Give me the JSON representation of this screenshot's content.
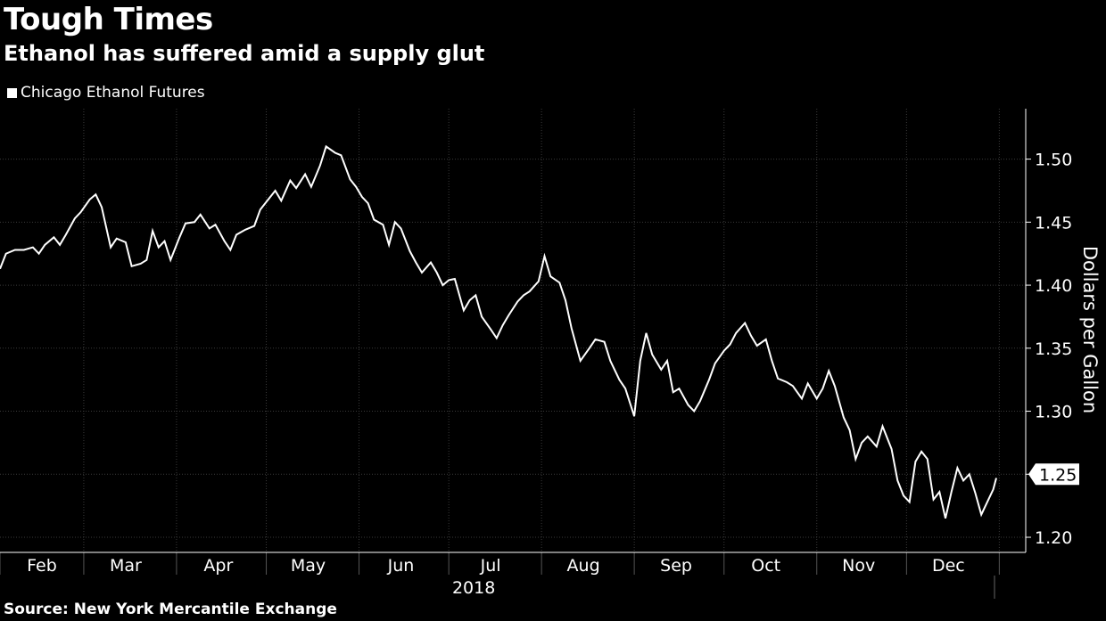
{
  "header": {
    "title": "Tough Times",
    "subtitle": "Ethanol has suffered amid a supply glut"
  },
  "legend": {
    "series_label": "Chicago Ethanol Futures"
  },
  "footer": {
    "source": "Source: New York Mercantile Exchange"
  },
  "colors": {
    "background": "#000000",
    "line": "#ffffff",
    "grid": "#3a3a3a"
  },
  "chart_data": {
    "type": "line",
    "title": "Tough Times",
    "subtitle": "Ethanol has suffered amid a supply glut",
    "ylabel": "Dollars per Gallon",
    "xlabel": "2018",
    "ylim": [
      1.188,
      1.54
    ],
    "yticks": [
      1.2,
      1.25,
      1.3,
      1.35,
      1.4,
      1.45,
      1.5
    ],
    "ytick_labels": [
      "1.20",
      "",
      "1.30",
      "1.35",
      "1.40",
      "1.45",
      "1.50"
    ],
    "grid": true,
    "legend_position": "top-left",
    "y_axis_side": "right",
    "x_start": "2018-02-01",
    "x_end": "2018-12-31",
    "month_ticks": [
      "2018-02-01",
      "2018-03-01",
      "2018-04-01",
      "2018-05-01",
      "2018-06-01",
      "2018-07-01",
      "2018-08-01",
      "2018-09-01",
      "2018-10-01",
      "2018-11-01",
      "2018-12-01",
      "2019-01-01"
    ],
    "month_labels": [
      {
        "date": "2018-02-15",
        "label": "Feb"
      },
      {
        "date": "2018-03-15",
        "label": "Mar"
      },
      {
        "date": "2018-04-15",
        "label": "Apr"
      },
      {
        "date": "2018-05-15",
        "label": "May"
      },
      {
        "date": "2018-06-15",
        "label": "Jun"
      },
      {
        "date": "2018-07-15",
        "label": "Jul"
      },
      {
        "date": "2018-08-15",
        "label": "Aug"
      },
      {
        "date": "2018-09-15",
        "label": "Sep"
      },
      {
        "date": "2018-10-15",
        "label": "Oct"
      },
      {
        "date": "2018-11-15",
        "label": "Nov"
      },
      {
        "date": "2018-12-15",
        "label": "Dec"
      }
    ],
    "year_label": {
      "date": "2018-07-01",
      "label": "2018"
    },
    "last_value_label": "1.25",
    "series": [
      {
        "name": "Chicago Ethanol Futures",
        "points": [
          [
            "2018-02-01",
            1.413
          ],
          [
            "2018-02-03",
            1.425
          ],
          [
            "2018-02-06",
            1.428
          ],
          [
            "2018-02-09",
            1.428
          ],
          [
            "2018-02-12",
            1.43
          ],
          [
            "2018-02-14",
            1.425
          ],
          [
            "2018-02-16",
            1.432
          ],
          [
            "2018-02-19",
            1.438
          ],
          [
            "2018-02-21",
            1.432
          ],
          [
            "2018-02-23",
            1.44
          ],
          [
            "2018-02-26",
            1.453
          ],
          [
            "2018-02-28",
            1.458
          ],
          [
            "2018-03-03",
            1.468
          ],
          [
            "2018-03-05",
            1.472
          ],
          [
            "2018-03-07",
            1.462
          ],
          [
            "2018-03-10",
            1.43
          ],
          [
            "2018-03-12",
            1.437
          ],
          [
            "2018-03-15",
            1.434
          ],
          [
            "2018-03-17",
            1.415
          ],
          [
            "2018-03-20",
            1.417
          ],
          [
            "2018-03-22",
            1.42
          ],
          [
            "2018-03-24",
            1.443
          ],
          [
            "2018-03-26",
            1.43
          ],
          [
            "2018-03-28",
            1.435
          ],
          [
            "2018-03-30",
            1.42
          ],
          [
            "2018-04-02",
            1.438
          ],
          [
            "2018-04-04",
            1.449
          ],
          [
            "2018-04-07",
            1.45
          ],
          [
            "2018-04-09",
            1.456
          ],
          [
            "2018-04-12",
            1.445
          ],
          [
            "2018-04-14",
            1.448
          ],
          [
            "2018-04-17",
            1.435
          ],
          [
            "2018-04-19",
            1.428
          ],
          [
            "2018-04-21",
            1.44
          ],
          [
            "2018-04-24",
            1.444
          ],
          [
            "2018-04-27",
            1.447
          ],
          [
            "2018-04-29",
            1.46
          ],
          [
            "2018-05-01",
            1.466
          ],
          [
            "2018-05-04",
            1.475
          ],
          [
            "2018-05-06",
            1.467
          ],
          [
            "2018-05-09",
            1.483
          ],
          [
            "2018-05-11",
            1.477
          ],
          [
            "2018-05-14",
            1.488
          ],
          [
            "2018-05-16",
            1.478
          ],
          [
            "2018-05-19",
            1.495
          ],
          [
            "2018-05-21",
            1.51
          ],
          [
            "2018-05-24",
            1.505
          ],
          [
            "2018-05-26",
            1.503
          ],
          [
            "2018-05-29",
            1.484
          ],
          [
            "2018-05-31",
            1.478
          ],
          [
            "2018-06-02",
            1.47
          ],
          [
            "2018-06-04",
            1.465
          ],
          [
            "2018-06-06",
            1.452
          ],
          [
            "2018-06-09",
            1.448
          ],
          [
            "2018-06-11",
            1.432
          ],
          [
            "2018-06-13",
            1.45
          ],
          [
            "2018-06-15",
            1.445
          ],
          [
            "2018-06-18",
            1.427
          ],
          [
            "2018-06-20",
            1.418
          ],
          [
            "2018-06-22",
            1.41
          ],
          [
            "2018-06-25",
            1.418
          ],
          [
            "2018-06-27",
            1.41
          ],
          [
            "2018-06-29",
            1.4
          ],
          [
            "2018-07-01",
            1.404
          ],
          [
            "2018-07-03",
            1.405
          ],
          [
            "2018-07-06",
            1.38
          ],
          [
            "2018-07-08",
            1.388
          ],
          [
            "2018-07-10",
            1.392
          ],
          [
            "2018-07-12",
            1.375
          ],
          [
            "2018-07-15",
            1.365
          ],
          [
            "2018-07-17",
            1.358
          ],
          [
            "2018-07-19",
            1.368
          ],
          [
            "2018-07-21",
            1.376
          ],
          [
            "2018-07-24",
            1.387
          ],
          [
            "2018-07-26",
            1.392
          ],
          [
            "2018-07-28",
            1.395
          ],
          [
            "2018-07-31",
            1.403
          ],
          [
            "2018-08-02",
            1.423
          ],
          [
            "2018-08-04",
            1.407
          ],
          [
            "2018-08-07",
            1.402
          ],
          [
            "2018-08-09",
            1.388
          ],
          [
            "2018-08-11",
            1.366
          ],
          [
            "2018-08-14",
            1.34
          ],
          [
            "2018-08-17",
            1.35
          ],
          [
            "2018-08-19",
            1.357
          ],
          [
            "2018-08-22",
            1.355
          ],
          [
            "2018-08-24",
            1.34
          ],
          [
            "2018-08-27",
            1.325
          ],
          [
            "2018-08-29",
            1.318
          ],
          [
            "2018-09-01",
            1.296
          ],
          [
            "2018-09-03",
            1.34
          ],
          [
            "2018-09-05",
            1.362
          ],
          [
            "2018-09-07",
            1.345
          ],
          [
            "2018-09-10",
            1.333
          ],
          [
            "2018-09-12",
            1.34
          ],
          [
            "2018-09-14",
            1.315
          ],
          [
            "2018-09-16",
            1.318
          ],
          [
            "2018-09-19",
            1.305
          ],
          [
            "2018-09-21",
            1.3
          ],
          [
            "2018-09-23",
            1.308
          ],
          [
            "2018-09-26",
            1.325
          ],
          [
            "2018-09-28",
            1.338
          ],
          [
            "2018-10-01",
            1.348
          ],
          [
            "2018-10-03",
            1.353
          ],
          [
            "2018-10-05",
            1.362
          ],
          [
            "2018-10-08",
            1.37
          ],
          [
            "2018-10-10",
            1.36
          ],
          [
            "2018-10-12",
            1.352
          ],
          [
            "2018-10-15",
            1.357
          ],
          [
            "2018-10-17",
            1.34
          ],
          [
            "2018-10-19",
            1.326
          ],
          [
            "2018-10-22",
            1.323
          ],
          [
            "2018-10-24",
            1.32
          ],
          [
            "2018-10-27",
            1.31
          ],
          [
            "2018-10-29",
            1.322
          ],
          [
            "2018-11-01",
            1.31
          ],
          [
            "2018-11-03",
            1.318
          ],
          [
            "2018-11-05",
            1.332
          ],
          [
            "2018-11-07",
            1.32
          ],
          [
            "2018-11-10",
            1.295
          ],
          [
            "2018-11-12",
            1.285
          ],
          [
            "2018-11-14",
            1.262
          ],
          [
            "2018-11-16",
            1.275
          ],
          [
            "2018-11-18",
            1.28
          ],
          [
            "2018-11-21",
            1.272
          ],
          [
            "2018-11-23",
            1.288
          ],
          [
            "2018-11-26",
            1.27
          ],
          [
            "2018-11-28",
            1.245
          ],
          [
            "2018-11-30",
            1.233
          ],
          [
            "2018-12-02",
            1.228
          ],
          [
            "2018-12-04",
            1.26
          ],
          [
            "2018-12-06",
            1.268
          ],
          [
            "2018-12-08",
            1.262
          ],
          [
            "2018-12-10",
            1.23
          ],
          [
            "2018-12-12",
            1.236
          ],
          [
            "2018-12-14",
            1.215
          ],
          [
            "2018-12-16",
            1.236
          ],
          [
            "2018-12-18",
            1.255
          ],
          [
            "2018-12-20",
            1.245
          ],
          [
            "2018-12-22",
            1.25
          ],
          [
            "2018-12-24",
            1.235
          ],
          [
            "2018-12-26",
            1.218
          ],
          [
            "2018-12-28",
            1.228
          ],
          [
            "2018-12-30",
            1.238
          ],
          [
            "2018-12-31",
            1.247
          ]
        ]
      }
    ]
  }
}
